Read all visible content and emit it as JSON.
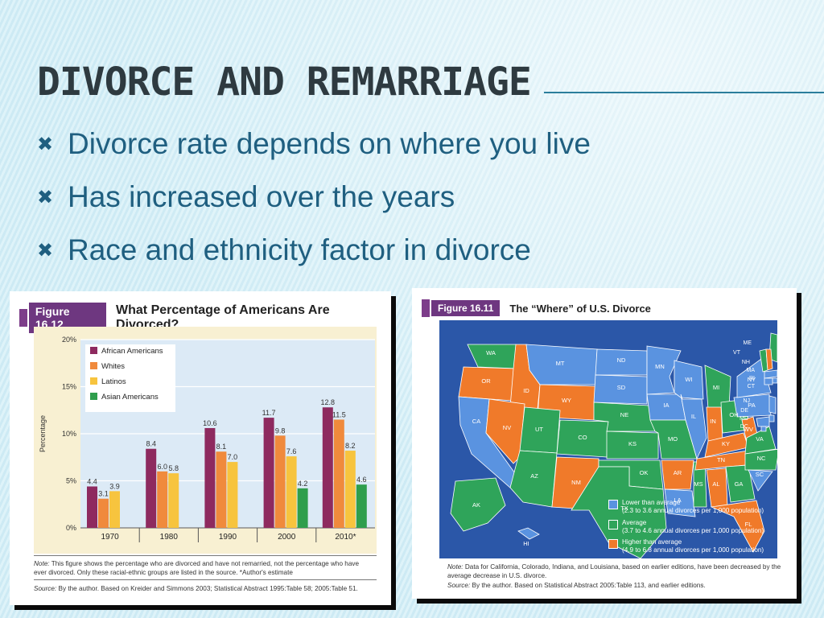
{
  "slide": {
    "title": "DIVORCE AND REMARRIAGE",
    "bullets": [
      "Divorce rate depends on where you live",
      "Has increased over the years",
      "Race and ethnicity factor in divorce"
    ],
    "bullet_icon": "x-mark-icon",
    "colors": {
      "text": "#1f5f80",
      "title": "#2e3a40",
      "accent": "#2b7e9c"
    }
  },
  "figure_1": {
    "tag": "Figure 16.12",
    "title": "What Percentage of Americans Are Divorced?",
    "note_label": "Note:",
    "note_text": "This figure shows the percentage who are divorced and have not remarried, not the percentage who have ever divorced. Only these racial-ethnic groups are listed in the source. *Author's estimate",
    "source_label": "Source:",
    "source_text": "By the author. Based on Kreider and Simmons 2003; Statistical Abstract 1995:Table 58; 2005:Table 51."
  },
  "chart_data": {
    "type": "bar",
    "title": "What Percentage of Americans Are Divorced?",
    "ylabel": "Percentage",
    "xlabel": "",
    "ylim": [
      0,
      20
    ],
    "yticks": [
      0,
      5,
      10,
      15,
      20
    ],
    "ytick_labels": [
      "0%",
      "5%",
      "10%",
      "15%",
      "20%"
    ],
    "categories": [
      "1970",
      "1980",
      "1990",
      "2000",
      "2010*"
    ],
    "legend_position": "top-left",
    "series": [
      {
        "name": "African Americans",
        "color": "#8e2a5f",
        "values": [
          4.4,
          8.4,
          10.6,
          11.7,
          12.8
        ]
      },
      {
        "name": "Whites",
        "color": "#f08a3c",
        "values": [
          3.1,
          6.0,
          8.1,
          9.8,
          11.5
        ]
      },
      {
        "name": "Latinos",
        "color": "#f7c43e",
        "values": [
          3.9,
          5.8,
          7.0,
          7.6,
          8.2
        ]
      },
      {
        "name": "Asian Americans",
        "color": "#2f9e4c",
        "values": [
          null,
          null,
          null,
          4.2,
          4.6
        ]
      }
    ],
    "data_labels": [
      [
        "4.4",
        "8.4",
        "10.6",
        "11.7",
        "12.8"
      ],
      [
        "3.1",
        "6.0",
        "8.1",
        "9.8",
        "11.5"
      ],
      [
        "3.9",
        "5.8",
        "7.0",
        "7.6",
        "8.2"
      ],
      [
        "",
        "",
        "",
        "4.2",
        "4.6"
      ]
    ]
  },
  "figure_2": {
    "tag": "Figure 16.11",
    "title": "The “Where” of U.S. Divorce",
    "legend": [
      {
        "label": "Lower than average",
        "detail": "(2.3 to 3.6 annual divorces per 1,000 population)",
        "color": "#5a93e0"
      },
      {
        "label": "Average",
        "detail": "(3.7 to 4.6 annual divorces per 1,000 population)",
        "color": "#2fa45a"
      },
      {
        "label": "Higher than average",
        "detail": "(4.9 to 6.8 annual divorces per 1,000 population)",
        "color": "#f07a2a"
      }
    ],
    "note_label": "Note:",
    "note_text": "Data for California, Colorado, Indiana, and Louisiana, based on earlier editions, have been decreased by the average decrease in U.S. divorce.",
    "source_label": "Source:",
    "source_text": "By the author. Based on Statistical Abstract 2005:Table 113, and earlier editions.",
    "colors": {
      "lower": "#5a93e0",
      "average": "#2fa45a",
      "higher": "#f07a2a",
      "ocean": "#2b57a8"
    },
    "states": [
      {
        "id": "WA",
        "c": "average"
      },
      {
        "id": "OR",
        "c": "higher"
      },
      {
        "id": "CA",
        "c": "lower"
      },
      {
        "id": "ID",
        "c": "higher"
      },
      {
        "id": "NV",
        "c": "higher"
      },
      {
        "id": "MT",
        "c": "lower"
      },
      {
        "id": "WY",
        "c": "higher"
      },
      {
        "id": "UT",
        "c": "average"
      },
      {
        "id": "AZ",
        "c": "average"
      },
      {
        "id": "CO",
        "c": "average"
      },
      {
        "id": "NM",
        "c": "higher"
      },
      {
        "id": "ND",
        "c": "lower"
      },
      {
        "id": "SD",
        "c": "lower"
      },
      {
        "id": "NE",
        "c": "average"
      },
      {
        "id": "KS",
        "c": "average"
      },
      {
        "id": "OK",
        "c": "average"
      },
      {
        "id": "TX",
        "c": "average"
      },
      {
        "id": "MN",
        "c": "lower"
      },
      {
        "id": "IA",
        "c": "lower"
      },
      {
        "id": "MO",
        "c": "average"
      },
      {
        "id": "AR",
        "c": "higher"
      },
      {
        "id": "LA",
        "c": "lower"
      },
      {
        "id": "WI",
        "c": "lower"
      },
      {
        "id": "IL",
        "c": "lower"
      },
      {
        "id": "MS",
        "c": "average"
      },
      {
        "id": "MI",
        "c": "average"
      },
      {
        "id": "IN",
        "c": "higher"
      },
      {
        "id": "KY",
        "c": "higher"
      },
      {
        "id": "TN",
        "c": "higher"
      },
      {
        "id": "AL",
        "c": "higher"
      },
      {
        "id": "OH",
        "c": "average"
      },
      {
        "id": "GA",
        "c": "average"
      },
      {
        "id": "FL",
        "c": "higher"
      },
      {
        "id": "WV",
        "c": "higher"
      },
      {
        "id": "VA",
        "c": "average"
      },
      {
        "id": "NC",
        "c": "average"
      },
      {
        "id": "SC",
        "c": "lower"
      },
      {
        "id": "PA",
        "c": "lower"
      },
      {
        "id": "NY",
        "c": "lower"
      },
      {
        "id": "VT",
        "c": "average"
      },
      {
        "id": "ME",
        "c": "average"
      },
      {
        "id": "NH",
        "c": "higher"
      },
      {
        "id": "MA",
        "c": "lower"
      },
      {
        "id": "RI",
        "c": "lower"
      },
      {
        "id": "CT",
        "c": "lower"
      },
      {
        "id": "NJ",
        "c": "lower"
      },
      {
        "id": "DE",
        "c": "lower"
      },
      {
        "id": "MD",
        "c": "lower"
      },
      {
        "id": "DC",
        "c": "lower"
      },
      {
        "id": "AK",
        "c": "average"
      },
      {
        "id": "HI",
        "c": "lower"
      }
    ]
  }
}
